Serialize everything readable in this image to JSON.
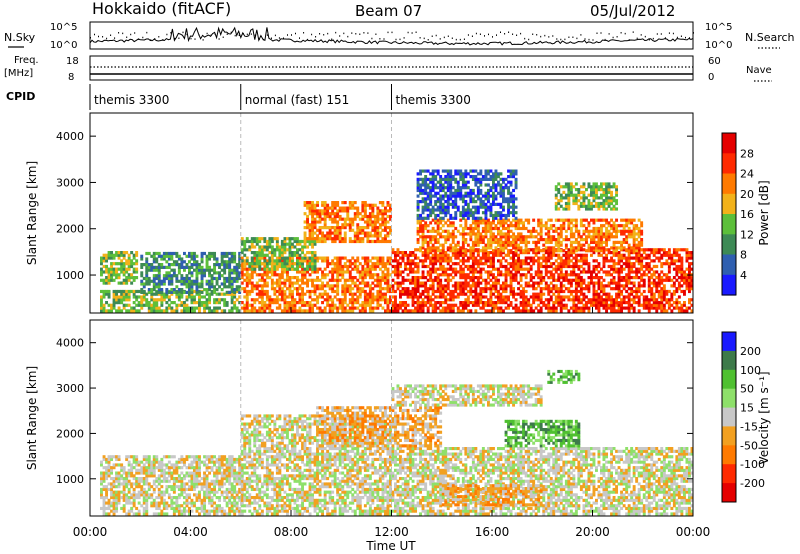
{
  "header": {
    "station": "Hokkaido (fitACF)",
    "beam": "Beam 07",
    "date": "05/Jul/2012"
  },
  "top_panel": {
    "left_label": "N.Sky",
    "left_ticks": [
      "10^5",
      "10^0"
    ],
    "right_label": "N.Search",
    "right_ticks": [
      "10^5",
      "10^0"
    ],
    "freq_label_1": "Freq.",
    "freq_label_2": "[MHz]",
    "freq_ticks": [
      "18",
      "8"
    ],
    "nave_label": "Nave",
    "nave_ticks": [
      "60",
      "0"
    ],
    "cpid_label": "CPID"
  },
  "cpid_segments": [
    {
      "start": 0.0,
      "end": 6.0,
      "label": "themis 3300"
    },
    {
      "start": 6.0,
      "end": 12.0,
      "label": "normal (fast) 151"
    },
    {
      "start": 12.0,
      "end": 24.0,
      "label": "themis 3300"
    }
  ],
  "chart_data": [
    {
      "type": "heatmap",
      "name": "power",
      "ylabel": "Slant Range [km]",
      "ylim": [
        180,
        4500
      ],
      "yticks": [
        "1000",
        "2000",
        "3000",
        "4000"
      ],
      "colorbar_label": "Power [dB]",
      "colorbar_ticks": [
        "4",
        "8",
        "12",
        "16",
        "20",
        "24",
        "28"
      ],
      "colors": [
        "#1a1aff",
        "#2f5fb0",
        "#3d8a55",
        "#5cbf3a",
        "#f2b21a",
        "#ff7a00",
        "#ff2a00",
        "#e50000"
      ],
      "bands": [
        {
          "t0": 0.4,
          "t1": 1.9,
          "r0": 800,
          "r1": 1500,
          "level": 3
        },
        {
          "t0": 0.4,
          "t1": 6.0,
          "r0": 200,
          "r1": 700,
          "level": 3
        },
        {
          "t0": 2.0,
          "t1": 6.0,
          "r0": 600,
          "r1": 1500,
          "level": 2
        },
        {
          "t0": 6.0,
          "t1": 12.0,
          "r0": 200,
          "r1": 1400,
          "level": 5
        },
        {
          "t0": 6.0,
          "t1": 9.0,
          "r0": 1100,
          "r1": 1800,
          "level": 3
        },
        {
          "t0": 8.5,
          "t1": 12.0,
          "r0": 1700,
          "r1": 2600,
          "level": 5
        },
        {
          "t0": 12.0,
          "t1": 24.0,
          "r0": 200,
          "r1": 1600,
          "level": 6
        },
        {
          "t0": 13.0,
          "t1": 22.0,
          "r0": 1500,
          "r1": 2200,
          "level": 5
        },
        {
          "t0": 18.5,
          "t1": 21.0,
          "r0": 2400,
          "r1": 3000,
          "level": 3
        },
        {
          "t0": 13.0,
          "t1": 17.0,
          "r0": 2200,
          "r1": 3300,
          "level": 1
        }
      ]
    },
    {
      "type": "heatmap",
      "name": "velocity",
      "ylabel": "Slant Range [km]",
      "ylim": [
        180,
        4500
      ],
      "yticks": [
        "1000",
        "2000",
        "3000",
        "4000"
      ],
      "xticks": [
        "00:00",
        "04:00",
        "08:00",
        "12:00",
        "16:00",
        "20:00",
        "00:00"
      ],
      "xlabel": "Time UT",
      "colorbar_label": "Velocity [m s⁻¹]",
      "colorbar_ticks": [
        "200",
        "100",
        "50",
        "15",
        "-15",
        "-50",
        "-100",
        "-200"
      ],
      "colors": [
        "#1a1aff",
        "#3d7a4a",
        "#4fc030",
        "#8ee06a",
        "#c8c8c8",
        "#f2a020",
        "#ff7a00",
        "#ff2a00",
        "#e50000"
      ],
      "bands": [
        {
          "t0": 0.4,
          "t1": 6.0,
          "r0": 200,
          "r1": 1500,
          "level": 4
        },
        {
          "t0": 6.0,
          "t1": 12.0,
          "r0": 200,
          "r1": 2400,
          "level": 4
        },
        {
          "t0": 12.0,
          "t1": 24.0,
          "r0": 200,
          "r1": 1700,
          "level": 4
        },
        {
          "t0": 9.0,
          "t1": 14.0,
          "r0": 1700,
          "r1": 2600,
          "level": 5
        },
        {
          "t0": 14.0,
          "t1": 18.0,
          "r0": 400,
          "r1": 900,
          "level": 5
        },
        {
          "t0": 16.5,
          "t1": 19.5,
          "r0": 1700,
          "r1": 2300,
          "level": 2
        },
        {
          "t0": 18.2,
          "t1": 19.5,
          "r0": 3100,
          "r1": 3400,
          "level": 2
        },
        {
          "t0": 12.0,
          "t1": 18.0,
          "r0": 2600,
          "r1": 3100,
          "level": 4
        }
      ]
    }
  ],
  "x_axis": {
    "range_hours": [
      0,
      24
    ]
  }
}
